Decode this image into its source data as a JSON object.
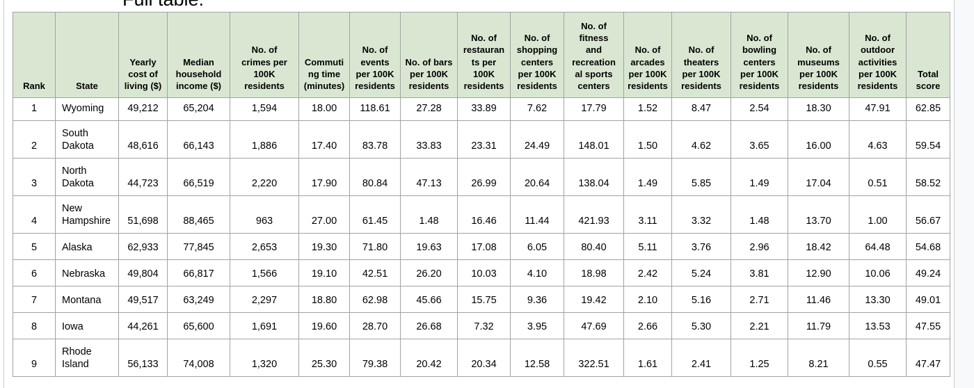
{
  "page": {
    "title": "Full table:"
  },
  "table": {
    "columns": [
      "Rank",
      "State",
      "Yearly\ncost of\nliving ($)",
      "Median\nhousehold\nincome ($)",
      "No. of\ncrimes per\n100K\nresidents",
      "Commuti\nng time\n(minutes)",
      "No. of\nevents\nper 100K\nresidents",
      "No. of bars\nper 100K\nresidents",
      "No. of\nrestauran\nts per\n100K\nresidents",
      "No. of\nshopping\ncenters\nper 100K\nresidents",
      "No. of\nfitness\nand\nrecreation\nal sports\ncenters",
      "No. of\narcades\nper 100K\nresidents",
      "No. of\ntheaters\nper 100K\nresidents",
      "No. of\nbowling\ncenters\nper 100K\nresidents",
      "No. of\nmuseums\nper 100K\nresidents",
      "No. of\noutdoor\nactivities\nper 100K\nresidents",
      "Total\nscore"
    ],
    "rows": [
      [
        "1",
        "Wyoming",
        "49,212",
        "65,204",
        "1,594",
        "18.00",
        "118.61",
        "27.28",
        "33.89",
        "7.62",
        "17.79",
        "1.52",
        "8.47",
        "2.54",
        "18.30",
        "47.91",
        "62.85"
      ],
      [
        "2",
        "South\nDakota",
        "48,616",
        "66,143",
        "1,886",
        "17.40",
        "83.78",
        "33.83",
        "23.31",
        "24.49",
        "148.01",
        "1.50",
        "4.62",
        "3.65",
        "16.00",
        "4.63",
        "59.54"
      ],
      [
        "3",
        "North\nDakota",
        "44,723",
        "66,519",
        "2,220",
        "17.90",
        "80.84",
        "47.13",
        "26.99",
        "20.64",
        "138.04",
        "1.49",
        "5.85",
        "1.49",
        "17.04",
        "0.51",
        "58.52"
      ],
      [
        "4",
        "New\nHampshire",
        "51,698",
        "88,465",
        "963",
        "27.00",
        "61.45",
        "1.48",
        "16.46",
        "11.44",
        "421.93",
        "3.11",
        "3.32",
        "1.48",
        "13.70",
        "1.00",
        "56.67"
      ],
      [
        "5",
        "Alaska",
        "62,933",
        "77,845",
        "2,653",
        "19.30",
        "71.80",
        "19.63",
        "17.08",
        "6.05",
        "80.40",
        "5.11",
        "3.76",
        "2.96",
        "18.42",
        "64.48",
        "54.68"
      ],
      [
        "6",
        "Nebraska",
        "49,804",
        "66,817",
        "1,566",
        "19.10",
        "42.51",
        "26.20",
        "10.03",
        "4.10",
        "18.98",
        "2.42",
        "5.24",
        "3.81",
        "12.90",
        "10.06",
        "49.24"
      ],
      [
        "7",
        "Montana",
        "49,517",
        "63,249",
        "2,297",
        "18.80",
        "62.98",
        "45.66",
        "15.75",
        "9.36",
        "19.42",
        "2.10",
        "5.16",
        "2.71",
        "11.46",
        "13.30",
        "49.01"
      ],
      [
        "8",
        "Iowa",
        "44,261",
        "65,600",
        "1,691",
        "19.60",
        "28.70",
        "26.68",
        "7.32",
        "3.95",
        "47.69",
        "2.66",
        "5.30",
        "2.21",
        "11.79",
        "13.53",
        "47.55"
      ],
      [
        "9",
        "Rhode\nIsland",
        "56,133",
        "74,008",
        "1,320",
        "25.30",
        "79.38",
        "20.42",
        "20.34",
        "12.58",
        "322.51",
        "1.61",
        "2.41",
        "1.25",
        "8.21",
        "0.55",
        "47.47"
      ]
    ]
  },
  "colors": {
    "header_bg": "#d9e7d2",
    "cell_border": "#a2a2a2",
    "row_bg": "#ffffff",
    "gutter_bg": "#f8f9fa",
    "gutter_border": "#c9ced3",
    "pane_border": "#c9c9c9",
    "text": "#000000"
  }
}
